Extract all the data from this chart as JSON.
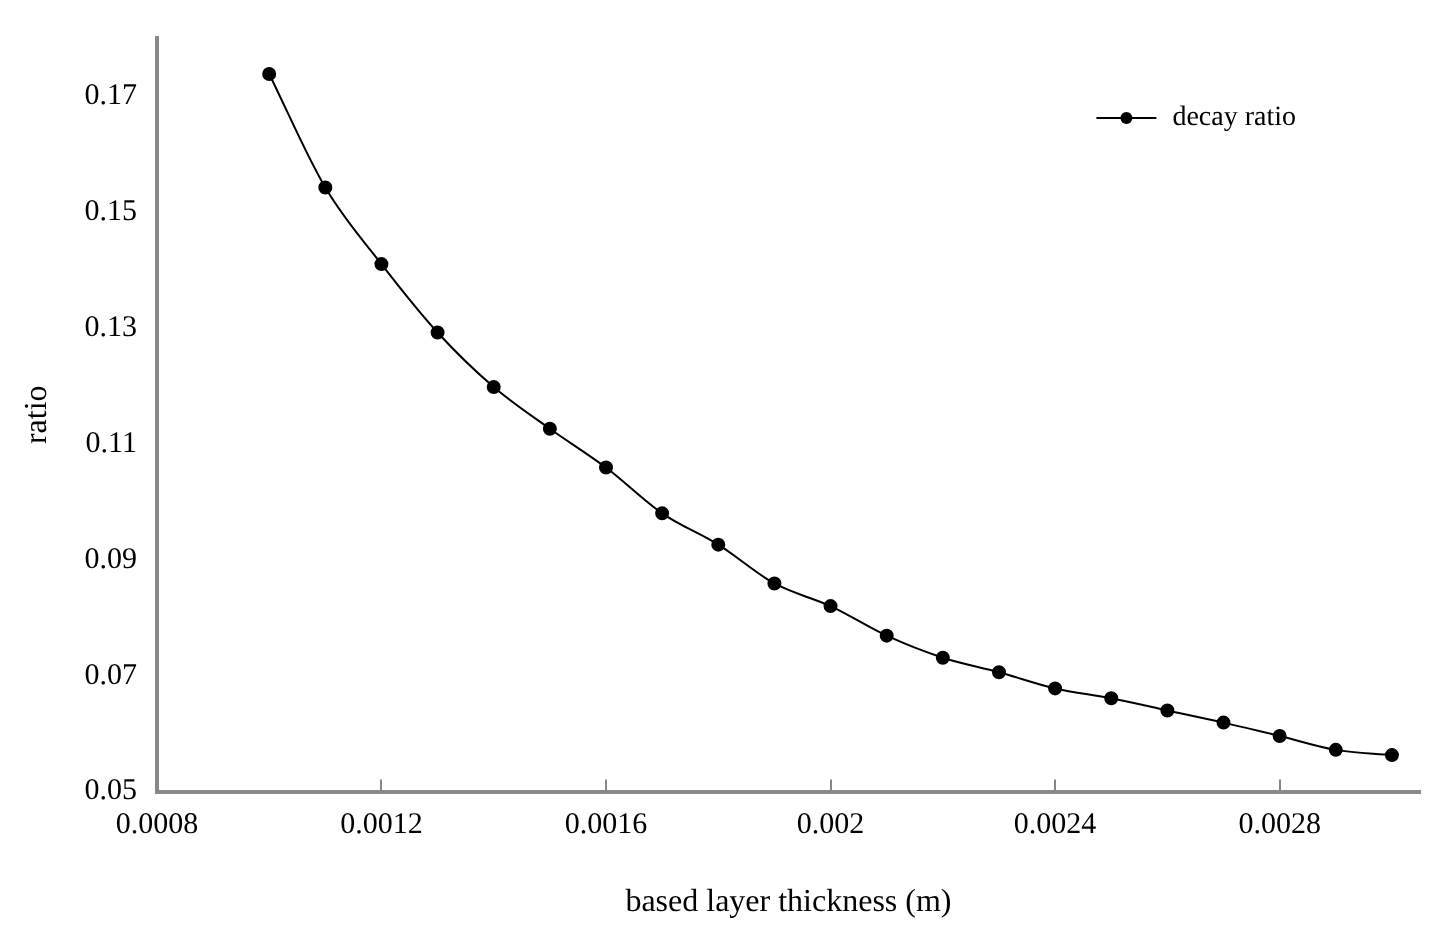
{
  "chart_data": {
    "type": "line",
    "xlabel": "based layer thickness (m)",
    "ylabel": "ratio",
    "x": [
      0.001,
      0.0011,
      0.0012,
      0.0013,
      0.0014,
      0.0015,
      0.0016,
      0.0017,
      0.0018,
      0.0019,
      0.002,
      0.0021,
      0.0022,
      0.0023,
      0.0024,
      0.0025,
      0.0026,
      0.0027,
      0.0028,
      0.0029,
      0.003
    ],
    "series": [
      {
        "name": "decay ratio",
        "color": "#000000",
        "values": [
          0.1738,
          0.1542,
          0.141,
          0.1292,
          0.1198,
          0.1126,
          0.1059,
          0.098,
          0.0926,
          0.0859,
          0.082,
          0.0769,
          0.0731,
          0.0706,
          0.0678,
          0.0661,
          0.064,
          0.0619,
          0.0596,
          0.0572,
          0.0563
        ]
      }
    ],
    "xlim": [
      0.0008,
      0.00305
    ],
    "xticks": [
      0.0008,
      0.0012,
      0.0016,
      0.002,
      0.0024,
      0.0028
    ],
    "ylim": [
      0.05,
      0.18
    ],
    "yticks": [
      0.05,
      0.07,
      0.09,
      0.11,
      0.13,
      0.15,
      0.17
    ],
    "grid": false,
    "legend": "top right",
    "marker": "circle",
    "line_style": "solid"
  }
}
